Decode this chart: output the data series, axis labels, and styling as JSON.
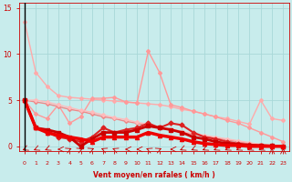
{
  "bg_color": "#c8ecec",
  "grid_color": "#a8d8d8",
  "xlabel": "Vent moyen/en rafales ( km/h )",
  "xlabel_color": "#cc0000",
  "tick_color": "#cc0000",
  "xlim": [
    -0.5,
    23.5
  ],
  "ylim": [
    -0.5,
    15.5
  ],
  "yticks": [
    0,
    5,
    10,
    15
  ],
  "xticks": [
    0,
    1,
    2,
    3,
    4,
    5,
    6,
    7,
    8,
    9,
    10,
    11,
    12,
    13,
    14,
    15,
    16,
    17,
    18,
    19,
    20,
    21,
    22,
    23
  ],
  "series": [
    {
      "x": [
        0,
        1,
        2,
        3,
        4,
        5,
        6,
        7,
        8,
        9,
        10,
        11,
        12,
        13,
        14,
        15,
        16,
        17,
        18,
        19,
        20,
        21,
        22,
        23
      ],
      "y": [
        13.5,
        8.0,
        6.5,
        5.5,
        5.3,
        5.2,
        5.1,
        5.0,
        4.9,
        4.8,
        4.7,
        4.6,
        4.5,
        4.3,
        4.0,
        3.8,
        3.5,
        3.2,
        3.0,
        2.7,
        2.4,
        5.0,
        3.0,
        2.8
      ],
      "color": "#ffaaaa",
      "lw": 1.0,
      "marker": "D",
      "markersize": 2.0,
      "zorder": 2
    },
    {
      "x": [
        0,
        1,
        2,
        3,
        4,
        5,
        6,
        7,
        8,
        9,
        10,
        11,
        12,
        13,
        14,
        15,
        16,
        17,
        18,
        19,
        20,
        21,
        22,
        23
      ],
      "y": [
        5.0,
        3.5,
        3.0,
        4.5,
        2.5,
        3.2,
        5.2,
        5.2,
        5.3,
        4.8,
        4.7,
        10.3,
        8.0,
        4.5,
        4.2,
        3.8,
        3.5,
        3.2,
        2.8,
        2.5,
        2.0,
        1.5,
        1.0,
        0.5
      ],
      "color": "#ff9999",
      "lw": 1.0,
      "marker": "D",
      "markersize": 2.0,
      "zorder": 2
    },
    {
      "x": [
        0,
        1,
        2,
        3,
        4,
        5,
        6,
        7,
        8,
        9,
        10,
        11,
        12,
        13,
        14,
        15,
        16,
        17,
        18,
        19,
        20,
        21,
        22,
        23
      ],
      "y": [
        5.0,
        4.8,
        4.6,
        4.3,
        4.0,
        3.8,
        3.5,
        3.2,
        3.0,
        2.7,
        2.5,
        2.2,
        2.0,
        1.8,
        1.5,
        1.3,
        1.1,
        0.9,
        0.7,
        0.5,
        0.3,
        0.2,
        0.1,
        0.0
      ],
      "color": "#ee8888",
      "lw": 1.0,
      "marker": "D",
      "markersize": 2.0,
      "zorder": 2
    },
    {
      "x": [
        0,
        1,
        2,
        3,
        4,
        5,
        6,
        7,
        8,
        9,
        10,
        11,
        12,
        13,
        14,
        15,
        16,
        17,
        18,
        19,
        20,
        21,
        22,
        23
      ],
      "y": [
        5.0,
        5.0,
        4.8,
        4.5,
        4.2,
        3.9,
        3.7,
        3.4,
        3.1,
        2.9,
        2.6,
        2.4,
        2.1,
        1.9,
        1.6,
        1.4,
        1.2,
        1.0,
        0.8,
        0.6,
        0.4,
        0.2,
        0.1,
        0.0
      ],
      "color": "#ffbbbb",
      "lw": 1.0,
      "marker": "D",
      "markersize": 2.0,
      "zorder": 2
    },
    {
      "x": [
        0,
        1,
        2,
        3,
        4,
        5,
        6,
        7,
        8,
        9,
        10,
        11,
        12,
        13,
        14,
        15,
        16,
        17,
        18,
        19,
        20,
        21,
        22,
        23
      ],
      "y": [
        5.0,
        2.0,
        1.5,
        1.0,
        0.8,
        0.5,
        1.0,
        2.0,
        1.5,
        1.8,
        2.0,
        2.5,
        2.0,
        2.5,
        2.3,
        1.5,
        1.0,
        0.8,
        0.5,
        0.3,
        0.2,
        0.1,
        0.05,
        0.0
      ],
      "color": "#dd2222",
      "lw": 1.5,
      "marker": "D",
      "markersize": 2.5,
      "zorder": 3
    },
    {
      "x": [
        0,
        1,
        2,
        3,
        4,
        5,
        6,
        7,
        8,
        9,
        10,
        11,
        12,
        13,
        14,
        15,
        16,
        17,
        18,
        19,
        20,
        21,
        22,
        23
      ],
      "y": [
        5.0,
        2.0,
        1.8,
        1.5,
        1.0,
        0.0,
        0.8,
        1.5,
        1.5,
        1.5,
        1.8,
        2.2,
        2.0,
        1.8,
        1.5,
        1.0,
        0.8,
        0.5,
        0.3,
        0.2,
        0.1,
        0.1,
        0.05,
        0.0
      ],
      "color": "#cc0000",
      "lw": 2.0,
      "marker": "s",
      "markersize": 2.5,
      "zorder": 4
    },
    {
      "x": [
        0,
        1,
        2,
        3,
        4,
        5,
        6,
        7,
        8,
        9,
        10,
        11,
        12,
        13,
        14,
        15,
        16,
        17,
        18,
        19,
        20,
        21,
        22,
        23
      ],
      "y": [
        5.0,
        2.0,
        1.5,
        1.2,
        1.0,
        0.8,
        0.5,
        1.0,
        1.0,
        1.0,
        1.0,
        1.5,
        1.2,
        1.0,
        0.8,
        0.5,
        0.3,
        0.2,
        0.1,
        0.1,
        0.0,
        0.0,
        0.0,
        0.0
      ],
      "color": "#ee0000",
      "lw": 2.5,
      "marker": "^",
      "markersize": 3.0,
      "zorder": 5
    }
  ],
  "wind_arrows": {
    "x": [
      0,
      1,
      2,
      3,
      4,
      5,
      6,
      7,
      8,
      9,
      10,
      11,
      12,
      13,
      14,
      15,
      16,
      17,
      18,
      19,
      20,
      21,
      22,
      23
    ],
    "angles": [
      225,
      225,
      225,
      270,
      45,
      45,
      45,
      315,
      315,
      270,
      270,
      315,
      45,
      270,
      225,
      225,
      225,
      225,
      225,
      225,
      225,
      225,
      0,
      0
    ],
    "color": "#cc0000"
  },
  "figsize": [
    3.2,
    2.0
  ],
  "dpi": 100
}
